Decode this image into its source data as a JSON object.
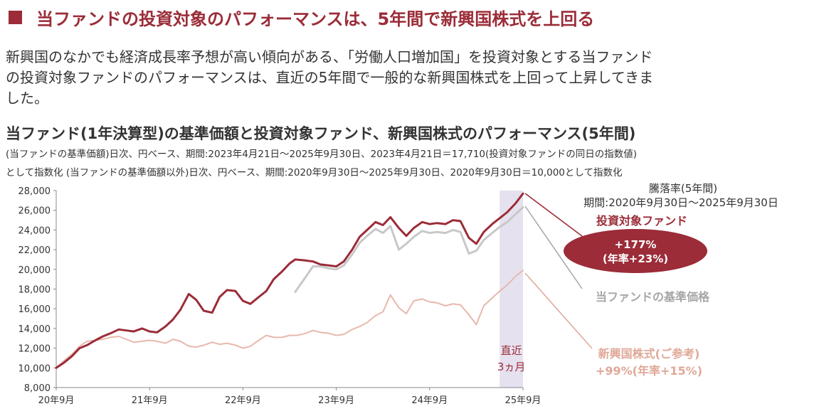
{
  "header": {
    "title": "当ファンドの投資対象のパフォーマンスは、5年間で新興国株式を上回る"
  },
  "intro": {
    "line1": "新興国のなかでも経済成長率予想が高い傾向がある、「労働人口増加国」を投資対象とする当ファンド",
    "line2": "の投資対象ファンドのパフォーマンスは、直近の5年間で一般的な新興国株式を上回って上昇してきま",
    "line3": "した。"
  },
  "colors": {
    "accent": "#9b2c38",
    "target_fund": "#9b2c38",
    "this_fund": "#c8c8c8",
    "emerging": "#e8b8ac",
    "highlight_band": "#e6e1ef"
  },
  "chart_data": {
    "type": "line",
    "title": "当ファンド(1年決算型)の基準価額と投資対象ファンド、新興国株式のパフォーマンス(5年間)",
    "notes": [
      "(当ファンドの基準価額)日次、円ベース、期間:2023年4月21日～2025年9月30日、2023年4月21日＝17,710(投資対象ファンドの同日の指数値)",
      "として指数化 (当ファンドの基準価額以外)日次、円ベース、期間:2020年9月30日～2025年9月30日、2020年9月30日＝10,000として指数化"
    ],
    "x_range": [
      2020.75,
      2025.75
    ],
    "x_ticks": [
      {
        "x": 2020.75,
        "label": "20年9月"
      },
      {
        "x": 2021.75,
        "label": "21年9月"
      },
      {
        "x": 2022.75,
        "label": "22年9月"
      },
      {
        "x": 2023.75,
        "label": "23年9月"
      },
      {
        "x": 2024.75,
        "label": "24年9月"
      },
      {
        "x": 2025.75,
        "label": "25年9月"
      }
    ],
    "ylim": [
      8000,
      28000
    ],
    "y_ticks": [
      8000,
      10000,
      12000,
      14000,
      16000,
      18000,
      20000,
      22000,
      24000,
      26000,
      28000
    ],
    "y_tick_labels": [
      "8,000",
      "10,000",
      "12,000",
      "14,000",
      "16,000",
      "18,000",
      "20,000",
      "22,000",
      "24,000",
      "26,000",
      "28,000"
    ],
    "highlight": {
      "x_start": 2025.5,
      "x_end": 2025.75,
      "label_line1": "直近",
      "label_line2": "3ヵ月"
    },
    "series": [
      {
        "name": "投資対象ファンド",
        "color": "#9b2c38",
        "points": [
          [
            2020.75,
            10000
          ],
          [
            2020.83,
            10500
          ],
          [
            2020.92,
            11200
          ],
          [
            2021.0,
            12000
          ],
          [
            2021.08,
            12300
          ],
          [
            2021.17,
            12800
          ],
          [
            2021.25,
            13200
          ],
          [
            2021.33,
            13500
          ],
          [
            2021.42,
            13900
          ],
          [
            2021.5,
            13800
          ],
          [
            2021.58,
            13700
          ],
          [
            2021.67,
            14000
          ],
          [
            2021.75,
            13700
          ],
          [
            2021.83,
            13600
          ],
          [
            2021.92,
            14200
          ],
          [
            2022.0,
            14900
          ],
          [
            2022.08,
            15900
          ],
          [
            2022.17,
            17500
          ],
          [
            2022.25,
            16900
          ],
          [
            2022.33,
            15800
          ],
          [
            2022.42,
            15600
          ],
          [
            2022.5,
            17200
          ],
          [
            2022.58,
            17900
          ],
          [
            2022.67,
            17800
          ],
          [
            2022.75,
            16800
          ],
          [
            2022.83,
            16500
          ],
          [
            2022.92,
            17200
          ],
          [
            2023.0,
            17800
          ],
          [
            2023.08,
            19000
          ],
          [
            2023.17,
            19800
          ],
          [
            2023.25,
            20600
          ],
          [
            2023.31,
            21000
          ],
          [
            2023.42,
            20900
          ],
          [
            2023.5,
            20800
          ],
          [
            2023.58,
            20500
          ],
          [
            2023.67,
            20400
          ],
          [
            2023.75,
            20300
          ],
          [
            2023.83,
            20800
          ],
          [
            2023.92,
            22000
          ],
          [
            2024.0,
            23300
          ],
          [
            2024.08,
            24000
          ],
          [
            2024.17,
            24800
          ],
          [
            2024.25,
            24500
          ],
          [
            2024.33,
            25300
          ],
          [
            2024.42,
            24200
          ],
          [
            2024.5,
            23400
          ],
          [
            2024.58,
            24200
          ],
          [
            2024.67,
            24800
          ],
          [
            2024.75,
            24600
          ],
          [
            2024.83,
            24700
          ],
          [
            2024.92,
            24600
          ],
          [
            2025.0,
            25000
          ],
          [
            2025.08,
            24900
          ],
          [
            2025.17,
            23200
          ],
          [
            2025.25,
            22600
          ],
          [
            2025.33,
            23800
          ],
          [
            2025.42,
            24600
          ],
          [
            2025.5,
            25200
          ],
          [
            2025.58,
            25800
          ],
          [
            2025.67,
            26700
          ],
          [
            2025.75,
            27700
          ]
        ]
      },
      {
        "name": "当ファンドの基準価格",
        "color": "#c8c8c8",
        "points": [
          [
            2023.31,
            17710
          ],
          [
            2023.42,
            19200
          ],
          [
            2023.5,
            20300
          ],
          [
            2023.58,
            20300
          ],
          [
            2023.67,
            20100
          ],
          [
            2023.75,
            20000
          ],
          [
            2023.83,
            20400
          ],
          [
            2023.92,
            21500
          ],
          [
            2024.0,
            22700
          ],
          [
            2024.08,
            23400
          ],
          [
            2024.17,
            24100
          ],
          [
            2024.25,
            23700
          ],
          [
            2024.33,
            24400
          ],
          [
            2024.42,
            22000
          ],
          [
            2024.5,
            22600
          ],
          [
            2024.58,
            23300
          ],
          [
            2024.67,
            23900
          ],
          [
            2024.75,
            23700
          ],
          [
            2024.83,
            23800
          ],
          [
            2024.92,
            23700
          ],
          [
            2025.0,
            24000
          ],
          [
            2025.08,
            23800
          ],
          [
            2025.17,
            21600
          ],
          [
            2025.25,
            21900
          ],
          [
            2025.33,
            23000
          ],
          [
            2025.42,
            23700
          ],
          [
            2025.5,
            24300
          ],
          [
            2025.58,
            24800
          ],
          [
            2025.67,
            25600
          ],
          [
            2025.75,
            26300
          ]
        ]
      },
      {
        "name": "新興国株式(ご参考)",
        "color": "#e8b8ac",
        "points": [
          [
            2020.75,
            10000
          ],
          [
            2020.83,
            10700
          ],
          [
            2020.92,
            11400
          ],
          [
            2021.0,
            12200
          ],
          [
            2021.08,
            12700
          ],
          [
            2021.17,
            12800
          ],
          [
            2021.25,
            12900
          ],
          [
            2021.33,
            13100
          ],
          [
            2021.42,
            13200
          ],
          [
            2021.5,
            12900
          ],
          [
            2021.58,
            12600
          ],
          [
            2021.67,
            12700
          ],
          [
            2021.75,
            12800
          ],
          [
            2021.83,
            12700
          ],
          [
            2021.92,
            12500
          ],
          [
            2022.0,
            12900
          ],
          [
            2022.08,
            12700
          ],
          [
            2022.17,
            12200
          ],
          [
            2022.25,
            12100
          ],
          [
            2022.33,
            12300
          ],
          [
            2022.42,
            12600
          ],
          [
            2022.5,
            12400
          ],
          [
            2022.58,
            12500
          ],
          [
            2022.67,
            12300
          ],
          [
            2022.75,
            12000
          ],
          [
            2022.83,
            12200
          ],
          [
            2022.92,
            12800
          ],
          [
            2023.0,
            13300
          ],
          [
            2023.08,
            13100
          ],
          [
            2023.17,
            13100
          ],
          [
            2023.25,
            13300
          ],
          [
            2023.33,
            13300
          ],
          [
            2023.42,
            13500
          ],
          [
            2023.5,
            13800
          ],
          [
            2023.58,
            13600
          ],
          [
            2023.67,
            13500
          ],
          [
            2023.75,
            13300
          ],
          [
            2023.83,
            13400
          ],
          [
            2023.92,
            13900
          ],
          [
            2024.0,
            14200
          ],
          [
            2024.08,
            14600
          ],
          [
            2024.17,
            15300
          ],
          [
            2024.25,
            15700
          ],
          [
            2024.33,
            17400
          ],
          [
            2024.42,
            16100
          ],
          [
            2024.5,
            15500
          ],
          [
            2024.58,
            16800
          ],
          [
            2024.67,
            17000
          ],
          [
            2024.75,
            16700
          ],
          [
            2024.83,
            16600
          ],
          [
            2024.92,
            16300
          ],
          [
            2025.0,
            16500
          ],
          [
            2025.08,
            16400
          ],
          [
            2025.17,
            15400
          ],
          [
            2025.25,
            14400
          ],
          [
            2025.33,
            16300
          ],
          [
            2025.42,
            17100
          ],
          [
            2025.5,
            17800
          ],
          [
            2025.58,
            18400
          ],
          [
            2025.67,
            19300
          ],
          [
            2025.75,
            19900
          ]
        ]
      }
    ],
    "annotations": {
      "period_title": "騰落率(5年間)",
      "period_range": "期間:2020年9月30日～2025年9月30日",
      "target_fund_label": "投資対象ファンド",
      "target_fund_return": "+177%",
      "target_fund_annual": "(年率+23%)",
      "this_fund_label": "当ファンドの基準価格",
      "emerging_label": "新興国株式(ご参考)",
      "emerging_return": "+99%(年率+15%)"
    }
  }
}
